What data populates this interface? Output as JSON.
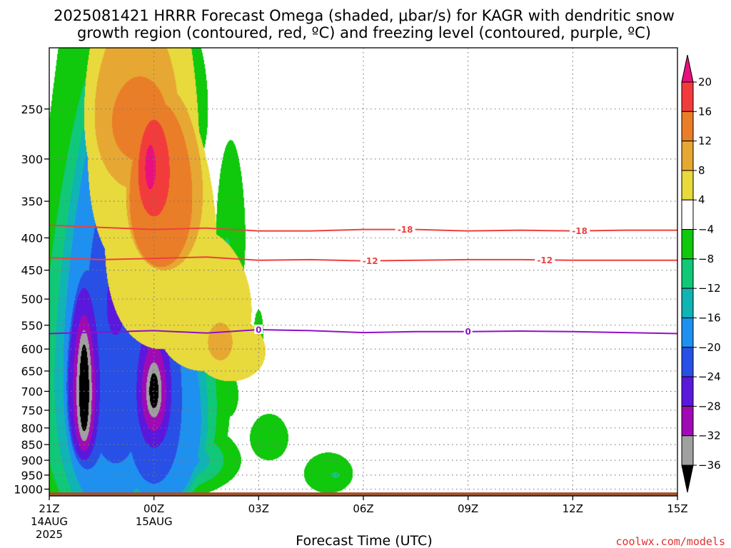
{
  "chart_data": {
    "type": "heatmap",
    "title_line1": "2025081421 HRRR Forecast Omega (shaded, μbar/s) for KAGR with dendritic snow",
    "title_line2": "growth region (contoured, red, ºC) and freezing level (contoured, purple, ºC)",
    "xlabel": "Forecast Time (UTC)",
    "credit": "coolwx.com/models",
    "y_axis": {
      "scale": "log-pressure",
      "range_hpa": [
        1025,
        200
      ],
      "ticks": [
        250,
        300,
        350,
        400,
        450,
        500,
        550,
        600,
        650,
        700,
        750,
        800,
        850,
        900,
        950,
        1000
      ],
      "labels": [
        "250",
        "300",
        "350",
        "400",
        "450",
        "500",
        "550",
        "600",
        "650",
        "700",
        "750",
        "800",
        "850",
        "900",
        "950",
        "1000"
      ]
    },
    "x_axis": {
      "range_hours": [
        0,
        18
      ],
      "ticks": [
        {
          "hour": 0,
          "label": "21Z",
          "sub1": "14AUG",
          "sub2": "2025"
        },
        {
          "hour": 3,
          "label": "00Z",
          "sub1": "15AUG",
          "sub2": ""
        },
        {
          "hour": 6,
          "label": "03Z",
          "sub1": "",
          "sub2": ""
        },
        {
          "hour": 9,
          "label": "06Z",
          "sub1": "",
          "sub2": ""
        },
        {
          "hour": 12,
          "label": "09Z",
          "sub1": "",
          "sub2": ""
        },
        {
          "hour": 15,
          "label": "12Z",
          "sub1": "",
          "sub2": ""
        },
        {
          "hour": 18,
          "label": "15Z",
          "sub1": "",
          "sub2": ""
        }
      ]
    },
    "grid": true,
    "colorbar": {
      "position": "right",
      "label_values": [
        "20",
        "16",
        "12",
        "8",
        "4",
        "−4",
        "−8",
        "−12",
        "−16",
        "−20",
        "−24",
        "−28",
        "−32",
        "−36"
      ],
      "bins": [
        {
          "min": 20,
          "max": null,
          "color": "#e8107c"
        },
        {
          "min": 16,
          "max": 20,
          "color": "#f23c3c"
        },
        {
          "min": 12,
          "max": 16,
          "color": "#ea7d28"
        },
        {
          "min": 8,
          "max": 12,
          "color": "#e6a832"
        },
        {
          "min": 4,
          "max": 8,
          "color": "#e8d93c"
        },
        {
          "min": -4,
          "max": 4,
          "color": "#ffffff"
        },
        {
          "min": -8,
          "max": -4,
          "color": "#10c80c"
        },
        {
          "min": -12,
          "max": -8,
          "color": "#10c878"
        },
        {
          "min": -16,
          "max": -12,
          "color": "#10b4b4"
        },
        {
          "min": -20,
          "max": -16,
          "color": "#1e90f0"
        },
        {
          "min": -24,
          "max": -20,
          "color": "#2850e6"
        },
        {
          "min": -28,
          "max": -24,
          "color": "#5a18dc"
        },
        {
          "min": -32,
          "max": -28,
          "color": "#a00ab4"
        },
        {
          "min": -36,
          "max": -32,
          "color": "#a0a0a0"
        },
        {
          "min": null,
          "max": -36,
          "color": "#000000"
        }
      ]
    },
    "contours": [
      {
        "name": "-18",
        "color": "#ee4040",
        "label": "-18",
        "points": [
          [
            0,
            382
          ],
          [
            1.5,
            385
          ],
          [
            3,
            388
          ],
          [
            4.5,
            386
          ],
          [
            6,
            390
          ],
          [
            7.5,
            390
          ],
          [
            9,
            388
          ],
          [
            10.5,
            388
          ],
          [
            12,
            390
          ],
          [
            13.5,
            389
          ],
          [
            15,
            390
          ],
          [
            16.5,
            389
          ],
          [
            18,
            389
          ]
        ],
        "label_hours": [
          10.2,
          15.2
        ]
      },
      {
        "name": "-12",
        "color": "#ee4040",
        "label": "-12",
        "points": [
          [
            0,
            430
          ],
          [
            1.5,
            433
          ],
          [
            3,
            431
          ],
          [
            4.5,
            429
          ],
          [
            6,
            434
          ],
          [
            7.5,
            433
          ],
          [
            9,
            435
          ],
          [
            10.5,
            434
          ],
          [
            12,
            433
          ],
          [
            13.5,
            433
          ],
          [
            15,
            434
          ],
          [
            16.5,
            434
          ],
          [
            18,
            434
          ]
        ],
        "label_hours": [
          9.2,
          14.2
        ]
      },
      {
        "name": "0",
        "color": "#9010c8",
        "label": "0",
        "points": [
          [
            0,
            567
          ],
          [
            1.5,
            564
          ],
          [
            3,
            561
          ],
          [
            4.5,
            566
          ],
          [
            6,
            559
          ],
          [
            7.5,
            561
          ],
          [
            9,
            565
          ],
          [
            10.5,
            563
          ],
          [
            12,
            563
          ],
          [
            13.5,
            562
          ],
          [
            15,
            563
          ],
          [
            16.5,
            565
          ],
          [
            18,
            567
          ]
        ],
        "label_hours": [
          6,
          12
        ]
      }
    ],
    "omega_features": [
      {
        "value": 5,
        "blobs": [
          [
            2.7,
            290,
            1.6,
            175
          ],
          [
            3.2,
            410,
            1.6,
            190
          ],
          [
            4.4,
            520,
            1.4,
            130
          ],
          [
            5.2,
            605,
            1.0,
            70
          ],
          [
            2.5,
            255,
            1.5,
            120
          ]
        ]
      },
      {
        "value": 9,
        "blobs": [
          [
            2.5,
            255,
            1.2,
            80
          ],
          [
            3.3,
            340,
            1.1,
            110
          ]
        ]
      },
      {
        "value": 13,
        "blobs": [
          [
            3.2,
            345,
            0.9,
            100
          ],
          [
            2.6,
            262,
            0.8,
            40
          ]
        ]
      },
      {
        "value": 17,
        "blobs": [
          [
            3.0,
            315,
            0.45,
            55
          ]
        ]
      },
      {
        "value": 22,
        "blobs": [
          [
            2.9,
            310,
            0.15,
            25
          ]
        ]
      },
      {
        "value": 10,
        "blobs": [
          [
            4.9,
            585,
            0.35,
            40
          ]
        ]
      },
      {
        "value": -6,
        "blobs": [
          [
            1.5,
            660,
            2.1,
            570
          ],
          [
            3.3,
            700,
            1.9,
            400
          ],
          [
            2.7,
            900,
            2.8,
            150
          ],
          [
            4.1,
            250,
            0.45,
            60
          ],
          [
            5.2,
            400,
            0.42,
            120
          ],
          [
            6.0,
            570,
            0.14,
            50
          ],
          [
            5.1,
            710,
            0.32,
            60
          ],
          [
            6.3,
            830,
            0.55,
            70
          ],
          [
            8.0,
            945,
            0.7,
            70
          ]
        ]
      },
      {
        "value": -10,
        "blobs": [
          [
            1.6,
            680,
            1.8,
            480
          ],
          [
            3.2,
            740,
            1.6,
            330
          ],
          [
            2.6,
            900,
            2.4,
            120
          ],
          [
            5.1,
            415,
            0.08,
            15
          ],
          [
            8.2,
            950,
            0.12,
            10
          ]
        ]
      },
      {
        "value": -14,
        "blobs": [
          [
            1.65,
            670,
            1.5,
            450
          ],
          [
            3.2,
            760,
            1.35,
            300
          ],
          [
            2.5,
            900,
            2.1,
            90
          ]
        ]
      },
      {
        "value": -18,
        "blobs": [
          [
            1.7,
            660,
            1.3,
            420
          ],
          [
            3.2,
            770,
            1.15,
            280
          ],
          [
            2.5,
            900,
            1.8,
            60
          ]
        ]
      },
      {
        "value": -22,
        "blobs": [
          [
            1.9,
            610,
            0.9,
            300
          ],
          [
            1.1,
            690,
            0.6,
            240
          ],
          [
            3.0,
            720,
            0.8,
            260
          ]
        ]
      },
      {
        "value": -26,
        "blobs": [
          [
            1.9,
            510,
            0.25,
            60
          ],
          [
            1.0,
            690,
            0.45,
            210
          ],
          [
            3.0,
            700,
            0.5,
            160
          ]
        ]
      },
      {
        "value": -30,
        "blobs": [
          [
            1.0,
            700,
            0.32,
            170
          ],
          [
            3.0,
            700,
            0.35,
            110
          ]
        ]
      },
      {
        "value": -34,
        "blobs": [
          [
            1.0,
            700,
            0.22,
            140
          ],
          [
            3.0,
            700,
            0.22,
            70
          ]
        ]
      },
      {
        "value": -40,
        "blobs": [
          [
            1.0,
            700,
            0.14,
            110
          ],
          [
            3.0,
            700,
            0.13,
            45
          ]
        ]
      }
    ],
    "ground": {
      "from_hpa": 1025,
      "to_hpa": 1012,
      "color": "#a0522d"
    }
  }
}
